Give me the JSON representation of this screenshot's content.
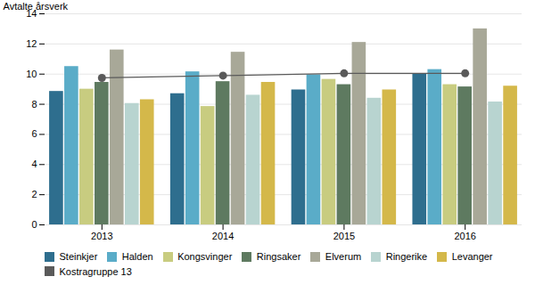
{
  "chart_data": {
    "type": "bar",
    "categories": [
      "2013",
      "2014",
      "2015",
      "2016"
    ],
    "series": [
      {
        "name": "Steinkjer",
        "color": "#2e6e8e",
        "values": [
          8.85,
          8.7,
          8.95,
          10.0
        ]
      },
      {
        "name": "Halden",
        "color": "#5aacc8",
        "values": [
          10.5,
          10.15,
          9.95,
          10.3
        ]
      },
      {
        "name": "Kongsvinger",
        "color": "#c8cc80",
        "values": [
          9.0,
          7.85,
          9.65,
          9.3
        ]
      },
      {
        "name": "Ringsaker",
        "color": "#5e7a60",
        "values": [
          9.45,
          9.5,
          9.3,
          9.15
        ]
      },
      {
        "name": "Elverum",
        "color": "#a8a898",
        "values": [
          11.6,
          11.45,
          12.1,
          13.0
        ]
      },
      {
        "name": "Ringerike",
        "color": "#b8d4d0",
        "values": [
          8.05,
          8.6,
          8.4,
          8.15
        ]
      },
      {
        "name": "Levanger",
        "color": "#d4b84a",
        "values": [
          8.3,
          9.45,
          8.95,
          9.2
        ]
      },
      {
        "name": "Kostragruppe 13",
        "type": "line",
        "marker": "circle",
        "color": "#5a5a5a",
        "values": [
          9.75,
          9.9,
          10.05,
          10.05
        ]
      }
    ],
    "ylabel": "Avtalte årsverk",
    "ylim": [
      0,
      14
    ],
    "yticks": [
      0,
      2,
      4,
      6,
      8,
      10,
      12,
      14
    ],
    "grid": true,
    "legend": "bottom"
  }
}
